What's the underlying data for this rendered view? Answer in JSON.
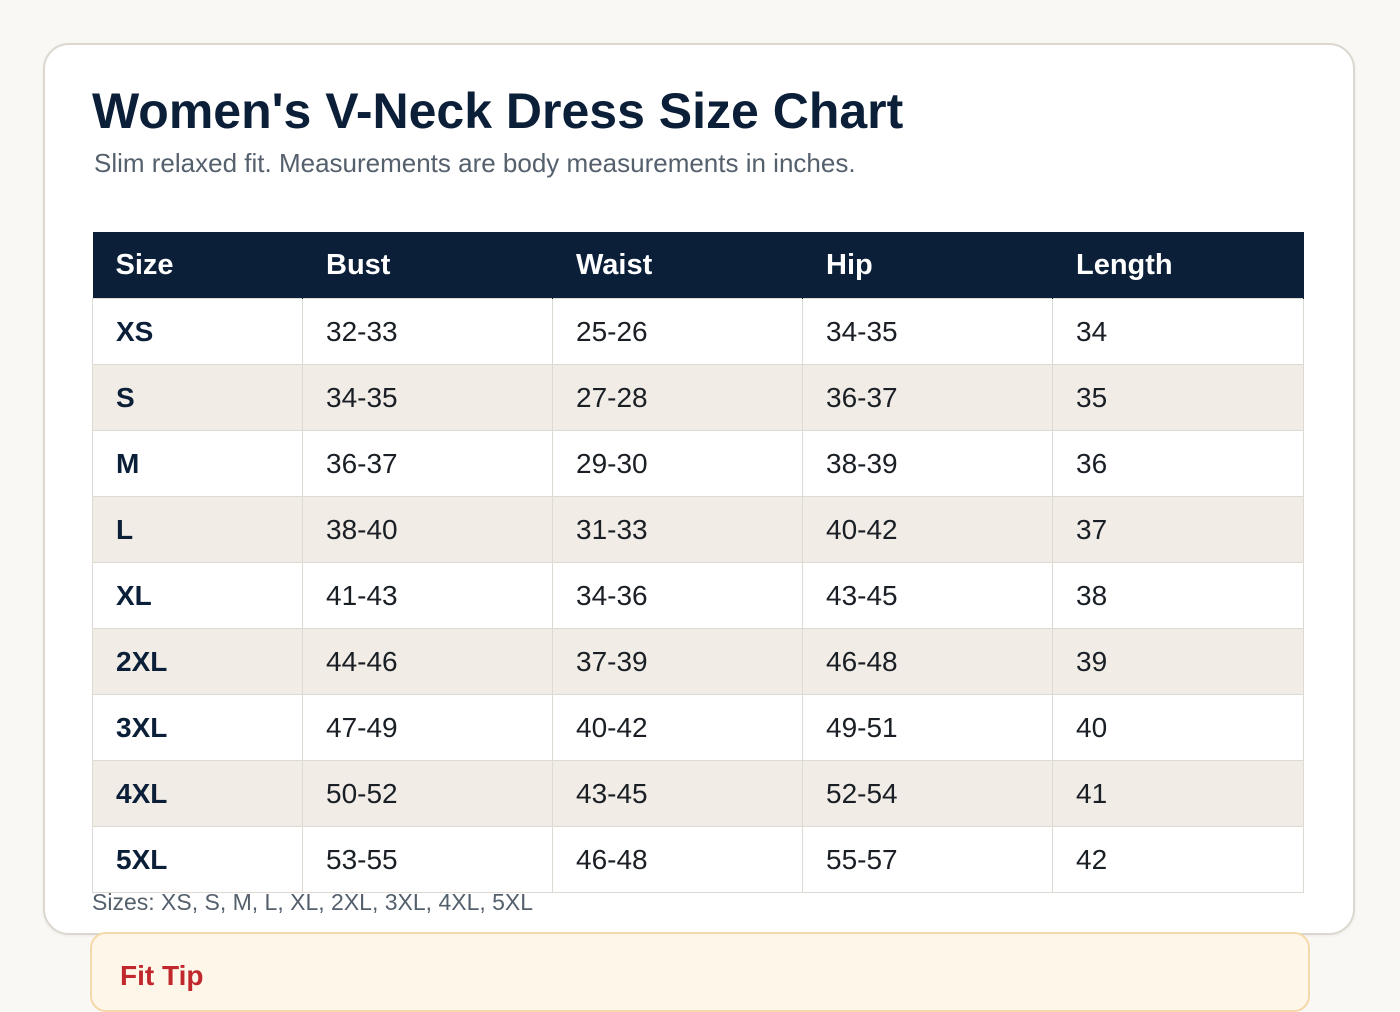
{
  "header": {
    "title": "Women's V-Neck Dress Size Chart",
    "subtitle": "Slim relaxed fit. Measurements are body measurements in inches."
  },
  "table": {
    "columns": [
      "Size",
      "Bust",
      "Waist",
      "Hip",
      "Length"
    ],
    "rows": [
      [
        "XS",
        "32-33",
        "25-26",
        "34-35",
        "34"
      ],
      [
        "S",
        "34-35",
        "27-28",
        "36-37",
        "35"
      ],
      [
        "M",
        "36-37",
        "29-30",
        "38-39",
        "36"
      ],
      [
        "L",
        "38-40",
        "31-33",
        "40-42",
        "37"
      ],
      [
        "XL",
        "41-43",
        "34-36",
        "43-45",
        "38"
      ],
      [
        "2XL",
        "44-46",
        "37-39",
        "46-48",
        "39"
      ],
      [
        "3XL",
        "47-49",
        "40-42",
        "49-51",
        "40"
      ],
      [
        "4XL",
        "50-52",
        "43-45",
        "52-54",
        "41"
      ],
      [
        "5XL",
        "53-55",
        "46-48",
        "55-57",
        "42"
      ]
    ]
  },
  "sizes_note": "Sizes: XS, S, M, L, XL, 2XL, 3XL, 4XL, 5XL",
  "fit_tip": {
    "title": "Fit Tip"
  },
  "colors": {
    "header_bg": "#0b1f38",
    "alt_row_bg": "#f1ede6",
    "tip_title": "#c0282d",
    "tip_bg": "#fff6ea"
  }
}
